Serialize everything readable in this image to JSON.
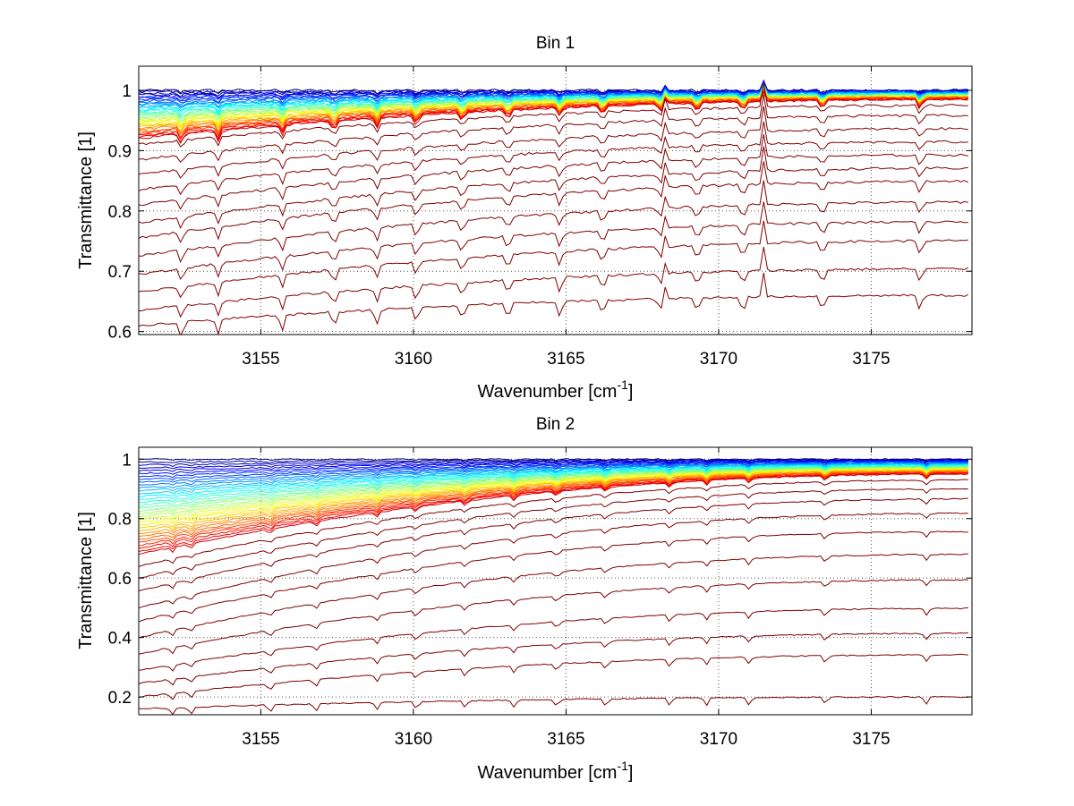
{
  "chart_data": [
    {
      "type": "line",
      "title": "Bin 1",
      "xlabel": "Wavenumber [cm",
      "xlabel_sup": "-1",
      "xlabel_end": "]",
      "ylabel": "Transmittance [1]",
      "xlim": [
        3151.0,
        3178.3
      ],
      "ylim": [
        0.595,
        1.04
      ],
      "xticks": [
        3155,
        3160,
        3165,
        3170,
        3175
      ],
      "xtick_labels": [
        "3155",
        "3160",
        "3165",
        "3170",
        "3175"
      ],
      "yticks": [
        0.6,
        0.7,
        0.8,
        0.9,
        1.0
      ],
      "ytick_labels": [
        "0.6",
        "0.7",
        "0.8",
        "0.9",
        "1"
      ],
      "grid": "dotted",
      "colormap": "jet",
      "series_summary": {
        "count": 45,
        "colored_start_values": [
          1.0,
          0.92
        ],
        "colored_end_values": [
          1.0,
          0.985
        ],
        "dark_start_values": [
          0.91,
          0.885,
          0.86,
          0.835,
          0.81,
          0.78,
          0.755,
          0.725,
          0.695,
          0.665,
          0.635,
          0.61
        ],
        "dark_end_values": [
          0.975,
          0.96,
          0.94,
          0.92,
          0.9,
          0.88,
          0.86,
          0.84,
          0.8,
          0.775,
          0.745,
          0.7,
          0.66
        ],
        "absorption_lines": [
          3152.4,
          3153.6,
          3155.7,
          3157.4,
          3158.8,
          3160.1,
          3161.6,
          3163.1,
          3164.8,
          3166.2,
          3168.1,
          3169.3,
          3170.8,
          3173.4,
          3176.6
        ],
        "emission_peaks": [
          3168.2,
          3171.5
        ]
      }
    },
    {
      "type": "line",
      "title": "Bin 2",
      "xlabel": "Wavenumber [cm",
      "xlabel_sup": "-1",
      "xlabel_end": "]",
      "ylabel": "Transmittance [1]",
      "xlim": [
        3151.0,
        3178.3
      ],
      "ylim": [
        0.14,
        1.04
      ],
      "xticks": [
        3155,
        3160,
        3165,
        3170,
        3175
      ],
      "xtick_labels": [
        "3155",
        "3160",
        "3165",
        "3170",
        "3175"
      ],
      "yticks": [
        0.2,
        0.4,
        0.6,
        0.8,
        1.0
      ],
      "ytick_labels": [
        "0.2",
        "0.4",
        "0.6",
        "0.8",
        "1"
      ],
      "grid": "dotted",
      "colormap": "jet",
      "series_summary": {
        "count": 45,
        "colored_start_values": [
          1.0,
          0.68
        ],
        "colored_end_values": [
          1.0,
          0.95
        ],
        "dark_start_values": [
          0.64,
          0.6,
          0.555,
          0.5,
          0.455,
          0.4,
          0.345,
          0.29,
          0.245,
          0.2,
          0.16
        ],
        "dark_end_values": [
          0.93,
          0.905,
          0.88,
          0.845,
          0.8,
          0.745,
          0.68,
          0.61,
          0.53,
          0.45,
          0.39,
          0.33,
          0.2
        ],
        "absorption_lines": [
          3152.1,
          3152.7,
          3155.3,
          3156.8,
          3158.8,
          3160.1,
          3161.7,
          3163.3,
          3164.7,
          3166.3,
          3168.4,
          3169.6,
          3171.0,
          3173.5,
          3176.8
        ]
      }
    }
  ]
}
